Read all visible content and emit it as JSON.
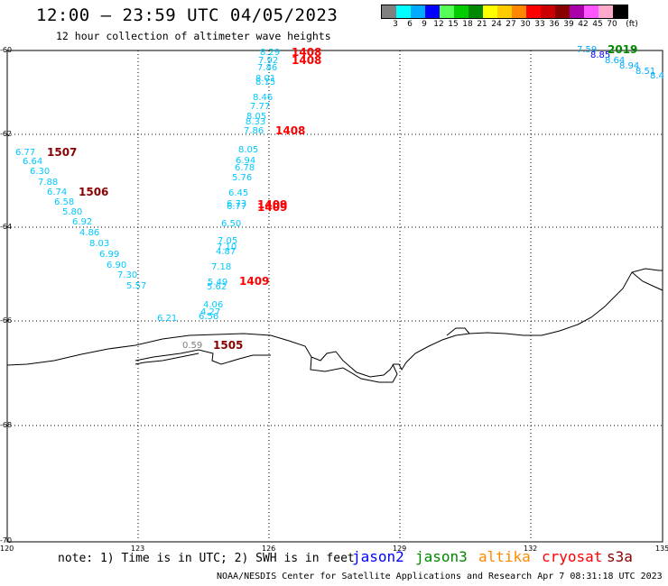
{
  "header": {
    "title": "12:00 — 23:59 UTC 04/05/2023",
    "subtitle": "12 hour collection of altimeter wave heights"
  },
  "color_scale": {
    "labels": [
      "3",
      "6",
      "9",
      "12",
      "15",
      "18",
      "21",
      "24",
      "27",
      "30",
      "33",
      "36",
      "39",
      "42",
      "45",
      "70"
    ],
    "unit": "(ft)",
    "colors": [
      "#808080",
      "#00ffff",
      "#00aaff",
      "#0000ff",
      "#55ff55",
      "#00cc00",
      "#008800",
      "#ffff00",
      "#ffcc00",
      "#ff8800",
      "#ff0000",
      "#cc0000",
      "#880000",
      "#aa00aa",
      "#ff55ff",
      "#ffaacc",
      "#000000"
    ]
  },
  "axes": {
    "lat_labels": [
      "-60",
      "-62",
      "-64",
      "-66",
      "-68",
      "-70"
    ],
    "lon_labels": [
      "120",
      "123",
      "126",
      "129",
      "132",
      "135"
    ]
  },
  "observations": [
    {
      "v": "8.29",
      "c": "#00c8ff"
    },
    {
      "v": "7.92",
      "c": "#00c8ff"
    },
    {
      "v": "7.86",
      "c": "#00c8ff"
    },
    {
      "v": "8.01",
      "c": "#00c8ff"
    },
    {
      "v": "8.15",
      "c": "#00c8ff"
    },
    {
      "v": "8.46",
      "c": "#00c8ff"
    },
    {
      "v": "7.77",
      "c": "#00c8ff"
    },
    {
      "v": "8.05",
      "c": "#00c8ff"
    },
    {
      "v": "8.33",
      "c": "#00c8ff"
    },
    {
      "v": "7.86",
      "c": "#00c8ff"
    },
    {
      "v": "8.05",
      "c": "#00c8ff"
    },
    {
      "v": "6.94",
      "c": "#00c8ff"
    },
    {
      "v": "6.78",
      "c": "#00c8ff"
    },
    {
      "v": "5.76",
      "c": "#00c8ff"
    },
    {
      "v": "6.45",
      "c": "#00c8ff"
    },
    {
      "v": "6.73",
      "c": "#00c8ff"
    },
    {
      "v": "6.77",
      "c": "#00c8ff"
    },
    {
      "v": "6.50",
      "c": "#00c8ff"
    },
    {
      "v": "7.05",
      "c": "#00c8ff"
    },
    {
      "v": "7.10",
      "c": "#00c8ff"
    },
    {
      "v": "4.87",
      "c": "#00c8ff"
    },
    {
      "v": "7.18",
      "c": "#00c8ff"
    },
    {
      "v": "5.49",
      "c": "#00c8ff"
    },
    {
      "v": "5.62",
      "c": "#00c8ff"
    },
    {
      "v": "4.06",
      "c": "#00c8ff"
    },
    {
      "v": "4.27",
      "c": "#00c8ff"
    },
    {
      "v": "6.56",
      "c": "#00c8ff"
    },
    {
      "v": "6.21",
      "c": "#00c8ff"
    },
    {
      "v": "6.77",
      "c": "#00c8ff"
    },
    {
      "v": "6.64",
      "c": "#00c8ff"
    },
    {
      "v": "6.30",
      "c": "#00c8ff"
    },
    {
      "v": "7.88",
      "c": "#00c8ff"
    },
    {
      "v": "6.74",
      "c": "#00c8ff"
    },
    {
      "v": "6.58",
      "c": "#00c8ff"
    },
    {
      "v": "5.80",
      "c": "#00c8ff"
    },
    {
      "v": "6.92",
      "c": "#00c8ff"
    },
    {
      "v": "4.86",
      "c": "#00c8ff"
    },
    {
      "v": "8.03",
      "c": "#00c8ff"
    },
    {
      "v": "6.99",
      "c": "#00c8ff"
    },
    {
      "v": "6.90",
      "c": "#00c8ff"
    },
    {
      "v": "7.30",
      "c": "#00c8ff"
    },
    {
      "v": "5.57",
      "c": "#00c8ff"
    },
    {
      "v": "0.59",
      "c": "#808080"
    },
    {
      "v": "7.59",
      "c": "#00aaff"
    },
    {
      "v": "8.85",
      "c": "#0000ff"
    },
    {
      "v": "8.64",
      "c": "#00aaff"
    },
    {
      "v": "8.94",
      "c": "#00aaff"
    },
    {
      "v": "8.51",
      "c": "#00aaff"
    },
    {
      "v": "8.4",
      "c": "#00aaff"
    }
  ],
  "time_tags": [
    {
      "t": "1408",
      "c": "#ff0000"
    },
    {
      "t": "1408",
      "c": "#ff0000"
    },
    {
      "t": "1408",
      "c": "#ff0000"
    },
    {
      "t": "1507",
      "c": "#880000"
    },
    {
      "t": "1506",
      "c": "#880000"
    },
    {
      "t": "1409",
      "c": "#ff0000"
    },
    {
      "t": "1409",
      "c": "#ff0000"
    },
    {
      "t": "1409",
      "c": "#ff0000"
    },
    {
      "t": "1505",
      "c": "#880000"
    },
    {
      "t": "2019",
      "c": "#008800"
    }
  ],
  "footer": {
    "note": "note: 1) Time is in UTC; 2) SWH is in feet",
    "satellites": [
      {
        "name": "jason2",
        "color": "#0000ff"
      },
      {
        "name": "jason3",
        "color": "#008800"
      },
      {
        "name": "altika",
        "color": "#ff8800"
      },
      {
        "name": "cryosat",
        "color": "#ff0000"
      },
      {
        "name": "s3a",
        "color": "#880000"
      }
    ],
    "credit": "NOAA/NESDIS Center for Satellite Applications and Research   Apr  7 08:31:18 UTC 2023"
  }
}
